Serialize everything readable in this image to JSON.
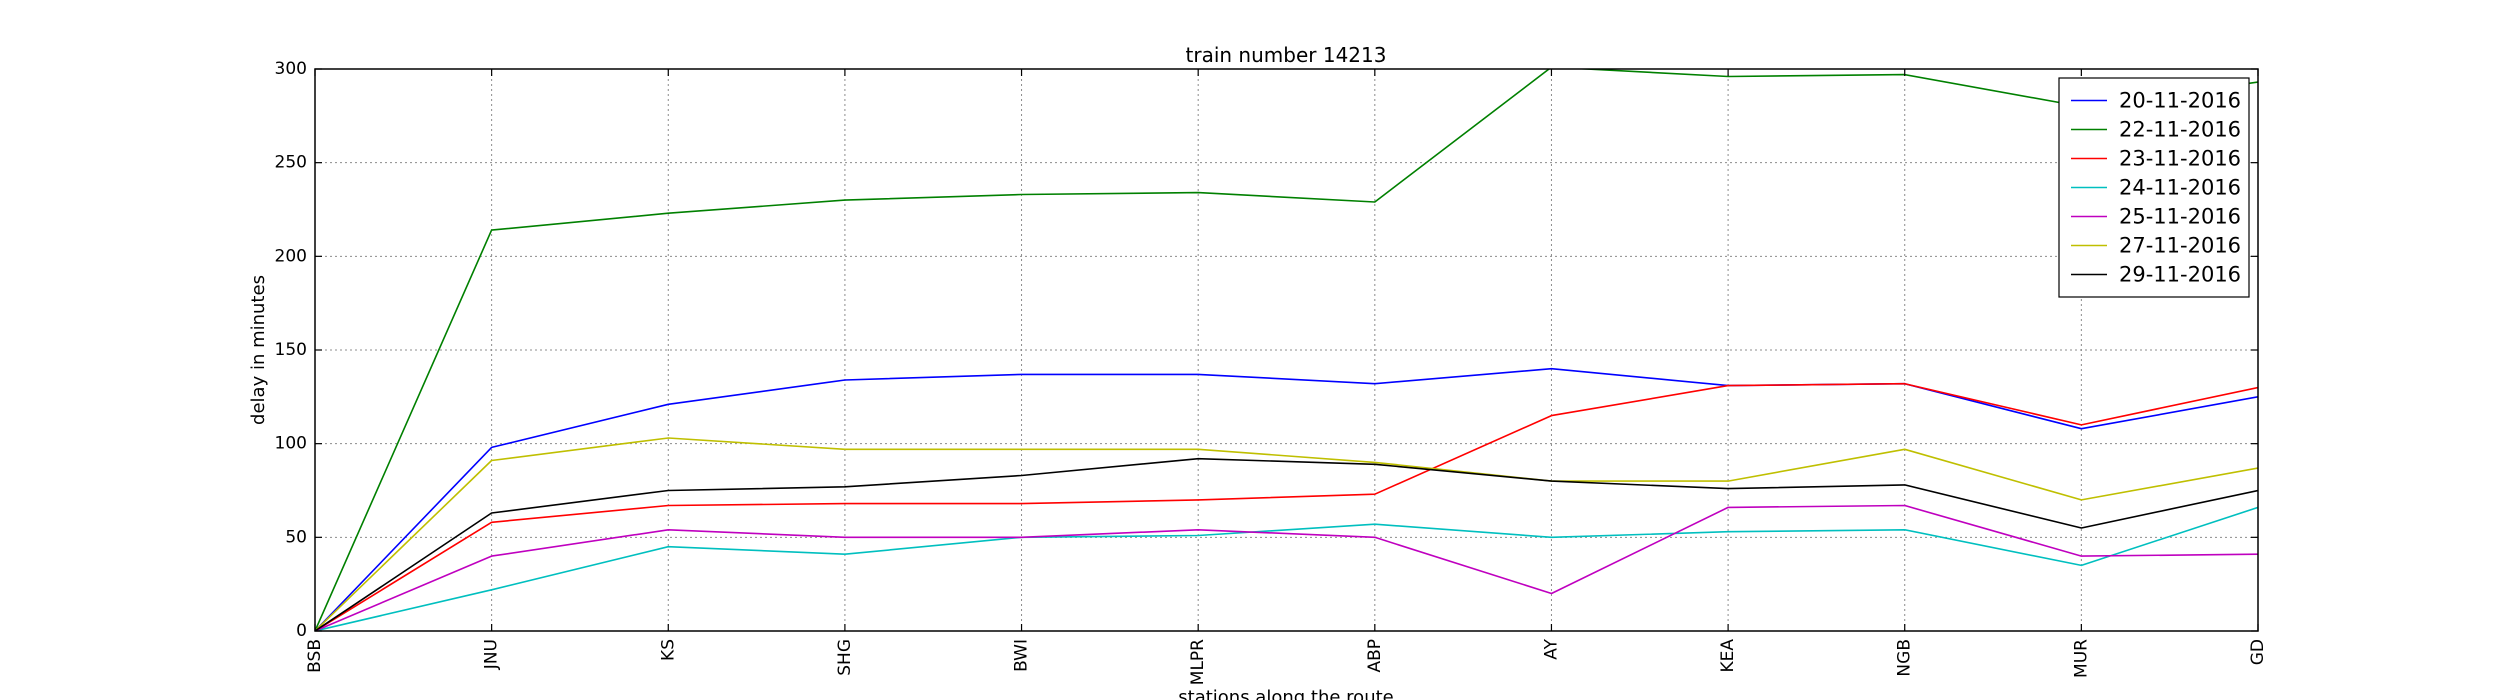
{
  "chart_data": {
    "type": "line",
    "title": "train number 14213",
    "xlabel": "stations along the route",
    "ylabel": "delay in minutes",
    "categories": [
      "BSB",
      "JNU",
      "KS",
      "SHG",
      "BWI",
      "MLPR",
      "ABP",
      "AY",
      "KEA",
      "NGB",
      "MUR",
      "GD"
    ],
    "ylim": [
      0,
      300
    ],
    "yticks": [
      0,
      50,
      100,
      150,
      200,
      250,
      300
    ],
    "grid": true,
    "legend_position": "top-right",
    "series": [
      {
        "name": "20-11-2016",
        "color": "#0000ff",
        "values": [
          0,
          98,
          121,
          134,
          137,
          137,
          132,
          140,
          131,
          132,
          108,
          125
        ]
      },
      {
        "name": "22-11-2016",
        "color": "#008000",
        "values": [
          0,
          214,
          223,
          230,
          233,
          234,
          229,
          301,
          296,
          297,
          280,
          293
        ]
      },
      {
        "name": "23-11-2016",
        "color": "#ff0000",
        "values": [
          0,
          58,
          67,
          68,
          68,
          70,
          73,
          115,
          131,
          132,
          110,
          130
        ]
      },
      {
        "name": "24-11-2016",
        "color": "#00bfbf",
        "values": [
          0,
          22,
          45,
          41,
          50,
          51,
          57,
          50,
          53,
          54,
          35,
          66
        ]
      },
      {
        "name": "25-11-2016",
        "color": "#bf00bf",
        "values": [
          0,
          40,
          54,
          50,
          50,
          54,
          50,
          20,
          66,
          67,
          40,
          41
        ]
      },
      {
        "name": "27-11-2016",
        "color": "#bfbf00",
        "values": [
          0,
          91,
          103,
          97,
          97,
          97,
          90,
          80,
          80,
          97,
          70,
          87
        ]
      },
      {
        "name": "29-11-2016",
        "color": "#000000",
        "values": [
          0,
          63,
          75,
          77,
          83,
          92,
          89,
          80,
          76,
          78,
          55,
          75
        ]
      }
    ]
  }
}
